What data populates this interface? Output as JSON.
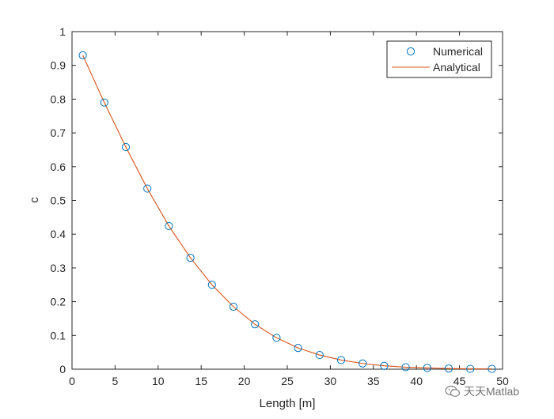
{
  "chart_data": {
    "type": "line",
    "xlabel": "Length [m]",
    "ylabel": "c",
    "xlim": [
      0,
      50
    ],
    "ylim": [
      0,
      1
    ],
    "xticks": [
      0,
      5,
      10,
      15,
      20,
      25,
      30,
      35,
      40,
      45,
      50
    ],
    "yticks": [
      0,
      0.1,
      0.2,
      0.3,
      0.4,
      0.5,
      0.6,
      0.7,
      0.8,
      0.9,
      1
    ],
    "xtick_labels": [
      "0",
      "5",
      "10",
      "15",
      "20",
      "25",
      "30",
      "35",
      "40",
      "45",
      "50"
    ],
    "ytick_labels": [
      "0",
      "0.1",
      "0.2",
      "0.3",
      "0.4",
      "0.5",
      "0.6",
      "0.7",
      "0.8",
      "0.9",
      "1"
    ],
    "grid": false,
    "legend_position": "top-right",
    "series": [
      {
        "name": "Numerical",
        "style": "markers",
        "marker": "circle",
        "color": "#0072BD",
        "x": [
          1.25,
          3.75,
          6.25,
          8.75,
          11.25,
          13.75,
          16.25,
          18.75,
          21.25,
          23.75,
          26.25,
          28.75,
          31.25,
          33.75,
          36.25,
          38.75,
          41.25,
          43.75,
          46.25,
          48.75
        ],
        "y": [
          0.93,
          0.79,
          0.658,
          0.535,
          0.424,
          0.33,
          0.25,
          0.185,
          0.133,
          0.093,
          0.063,
          0.042,
          0.027,
          0.017,
          0.01,
          0.006,
          0.004,
          0.002,
          0.001,
          0.001
        ]
      },
      {
        "name": "Analytical",
        "style": "line",
        "color": "#D95319",
        "x": [
          1.25,
          3.75,
          6.25,
          8.75,
          11.25,
          13.75,
          16.25,
          18.75,
          21.25,
          23.75,
          26.25,
          28.75,
          31.25,
          33.75,
          36.25,
          38.75,
          41.25,
          43.75,
          46.25,
          48.75
        ],
        "y": [
          0.93,
          0.79,
          0.658,
          0.535,
          0.424,
          0.33,
          0.25,
          0.185,
          0.133,
          0.093,
          0.063,
          0.042,
          0.027,
          0.017,
          0.01,
          0.006,
          0.004,
          0.002,
          0.001,
          0.001
        ]
      }
    ]
  },
  "watermark": {
    "text": "天天Matlab",
    "icon": "wechat-icon"
  }
}
